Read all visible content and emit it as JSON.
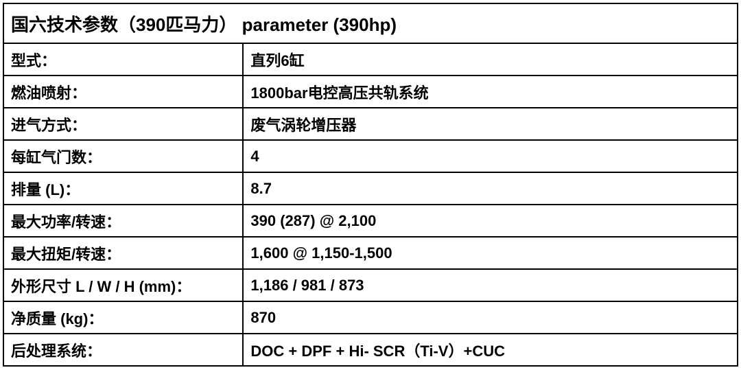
{
  "table": {
    "title": "国六技术参数（390匹马力） parameter (390hp)",
    "rows": [
      {
        "label": "型式：",
        "value": "直列6缸"
      },
      {
        "label": "燃油喷射：",
        "value": "1800bar电控高压共轨系统"
      },
      {
        "label": "进气方式：",
        "value": "废气涡轮增压器"
      },
      {
        "label": "每缸气门数：",
        "value": "4"
      },
      {
        "label": "排量 (L)：",
        "value": "8.7"
      },
      {
        "label": "最大功率/转速：",
        "value": "390 (287) @ 2,100"
      },
      {
        "label": "最大扭矩/转速：",
        "value": "1,600 @ 1,150-1,500"
      },
      {
        "label": "外形尺寸 L / W / H (mm)：",
        "value": "1,186 / 981 / 873"
      },
      {
        "label": "净质量 (kg)：",
        "value": "870"
      },
      {
        "label": "后处理系统：",
        "value": "DOC + DPF + Hi- SCR（Ti-V）+CUC"
      }
    ],
    "border_color": "#000000",
    "text_color": "#000000",
    "background_color": "#ffffff",
    "title_fontsize": 26,
    "row_fontsize": 22,
    "font_weight": 700,
    "label_col_width": 350,
    "value_col_width": 722
  }
}
